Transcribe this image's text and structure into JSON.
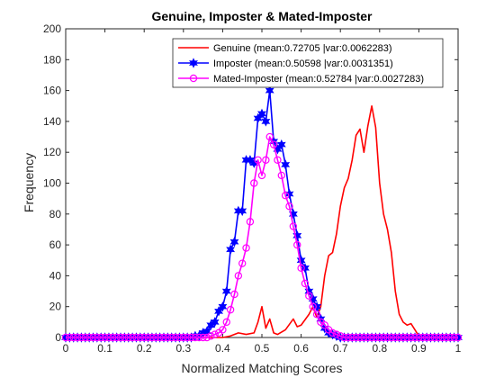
{
  "chart_data": {
    "type": "line",
    "title": "Genuine, Imposter & Mated-Imposter",
    "xlabel": "Normalized Matching Scores",
    "ylabel": "Frequency",
    "xlim": [
      0,
      1
    ],
    "ylim": [
      0,
      200
    ],
    "xticks": [
      "0",
      "0.1",
      "0.2",
      "0.3",
      "0.4",
      "0.5",
      "0.6",
      "0.7",
      "0.8",
      "0.9",
      "1"
    ],
    "yticks": [
      "0",
      "20",
      "40",
      "60",
      "80",
      "100",
      "120",
      "140",
      "160",
      "180",
      "200"
    ],
    "grid": false,
    "legend_position": "top-right",
    "series": [
      {
        "name": "Genuine (mean:0.72705 |var:0.0062283)",
        "color": "#ff0000",
        "marker": "none",
        "points": [
          [
            0,
            0
          ],
          [
            0.1,
            0
          ],
          [
            0.2,
            0
          ],
          [
            0.3,
            0
          ],
          [
            0.4,
            0
          ],
          [
            0.42,
            1
          ],
          [
            0.44,
            3
          ],
          [
            0.46,
            2
          ],
          [
            0.48,
            3
          ],
          [
            0.49,
            10
          ],
          [
            0.5,
            20
          ],
          [
            0.51,
            6
          ],
          [
            0.52,
            12
          ],
          [
            0.53,
            3
          ],
          [
            0.54,
            2
          ],
          [
            0.56,
            5
          ],
          [
            0.58,
            12
          ],
          [
            0.59,
            7
          ],
          [
            0.6,
            8
          ],
          [
            0.62,
            15
          ],
          [
            0.63,
            20
          ],
          [
            0.64,
            13
          ],
          [
            0.65,
            20
          ],
          [
            0.66,
            40
          ],
          [
            0.67,
            53
          ],
          [
            0.68,
            55
          ],
          [
            0.69,
            67
          ],
          [
            0.7,
            85
          ],
          [
            0.71,
            97
          ],
          [
            0.72,
            103
          ],
          [
            0.73,
            115
          ],
          [
            0.74,
            131
          ],
          [
            0.75,
            135
          ],
          [
            0.76,
            120
          ],
          [
            0.77,
            137
          ],
          [
            0.78,
            150
          ],
          [
            0.79,
            136
          ],
          [
            0.8,
            100
          ],
          [
            0.81,
            80
          ],
          [
            0.82,
            70
          ],
          [
            0.83,
            55
          ],
          [
            0.84,
            30
          ],
          [
            0.85,
            15
          ],
          [
            0.86,
            10
          ],
          [
            0.87,
            8
          ],
          [
            0.88,
            9
          ],
          [
            0.89,
            5
          ],
          [
            0.9,
            1
          ],
          [
            0.95,
            0
          ],
          [
            1.0,
            0
          ]
        ]
      },
      {
        "name": "Imposter (mean:0.50598 |var:0.0031351)",
        "color": "#0000ff",
        "marker": "hexagram",
        "points": [
          [
            0,
            0
          ],
          [
            0.01,
            0
          ],
          [
            0.02,
            0
          ],
          [
            0.03,
            0
          ],
          [
            0.04,
            0
          ],
          [
            0.05,
            0
          ],
          [
            0.06,
            0
          ],
          [
            0.07,
            0
          ],
          [
            0.08,
            0
          ],
          [
            0.09,
            0
          ],
          [
            0.1,
            0
          ],
          [
            0.11,
            0
          ],
          [
            0.12,
            0
          ],
          [
            0.13,
            0
          ],
          [
            0.14,
            0
          ],
          [
            0.15,
            0
          ],
          [
            0.16,
            0
          ],
          [
            0.17,
            0
          ],
          [
            0.18,
            0
          ],
          [
            0.19,
            0
          ],
          [
            0.2,
            0
          ],
          [
            0.21,
            0
          ],
          [
            0.22,
            0
          ],
          [
            0.23,
            0
          ],
          [
            0.24,
            0
          ],
          [
            0.25,
            0
          ],
          [
            0.26,
            0
          ],
          [
            0.27,
            0
          ],
          [
            0.28,
            0
          ],
          [
            0.29,
            0
          ],
          [
            0.3,
            0
          ],
          [
            0.31,
            0
          ],
          [
            0.32,
            0
          ],
          [
            0.33,
            1
          ],
          [
            0.34,
            1
          ],
          [
            0.35,
            3
          ],
          [
            0.36,
            4
          ],
          [
            0.37,
            8
          ],
          [
            0.38,
            10
          ],
          [
            0.39,
            17
          ],
          [
            0.4,
            20
          ],
          [
            0.41,
            30
          ],
          [
            0.42,
            57
          ],
          [
            0.43,
            62
          ],
          [
            0.44,
            82
          ],
          [
            0.45,
            82
          ],
          [
            0.46,
            115
          ],
          [
            0.47,
            115
          ],
          [
            0.48,
            113
          ],
          [
            0.49,
            142
          ],
          [
            0.5,
            145
          ],
          [
            0.51,
            140
          ],
          [
            0.52,
            160
          ],
          [
            0.53,
            127
          ],
          [
            0.54,
            122
          ],
          [
            0.55,
            125
          ],
          [
            0.56,
            112
          ],
          [
            0.57,
            93
          ],
          [
            0.58,
            80
          ],
          [
            0.59,
            66
          ],
          [
            0.6,
            50
          ],
          [
            0.61,
            45
          ],
          [
            0.62,
            30
          ],
          [
            0.63,
            25
          ],
          [
            0.64,
            20
          ],
          [
            0.65,
            12
          ],
          [
            0.66,
            6
          ],
          [
            0.67,
            3
          ],
          [
            0.68,
            2
          ],
          [
            0.69,
            1
          ],
          [
            0.7,
            0
          ],
          [
            0.71,
            0
          ],
          [
            0.72,
            0
          ],
          [
            0.73,
            0
          ],
          [
            0.74,
            0
          ],
          [
            0.75,
            0
          ],
          [
            0.76,
            0
          ],
          [
            0.77,
            0
          ],
          [
            0.78,
            0
          ],
          [
            0.79,
            0
          ],
          [
            0.8,
            0
          ],
          [
            0.81,
            0
          ],
          [
            0.82,
            0
          ],
          [
            0.83,
            0
          ],
          [
            0.84,
            0
          ],
          [
            0.85,
            0
          ],
          [
            0.86,
            0
          ],
          [
            0.87,
            0
          ],
          [
            0.88,
            0
          ],
          [
            0.89,
            0
          ],
          [
            0.9,
            0
          ],
          [
            0.91,
            0
          ],
          [
            0.92,
            0
          ],
          [
            0.93,
            0
          ],
          [
            0.94,
            0
          ],
          [
            0.95,
            0
          ],
          [
            0.96,
            0
          ],
          [
            0.97,
            0
          ],
          [
            0.98,
            0
          ],
          [
            0.99,
            0
          ],
          [
            1.0,
            0
          ]
        ]
      },
      {
        "name": "Mated-Imposter (mean:0.52784 |var:0.0027283)",
        "color": "#ff00ff",
        "marker": "circle",
        "points": [
          [
            0,
            0
          ],
          [
            0.01,
            0
          ],
          [
            0.02,
            0
          ],
          [
            0.03,
            0
          ],
          [
            0.04,
            0
          ],
          [
            0.05,
            0
          ],
          [
            0.06,
            0
          ],
          [
            0.07,
            0
          ],
          [
            0.08,
            0
          ],
          [
            0.09,
            0
          ],
          [
            0.1,
            0
          ],
          [
            0.11,
            0
          ],
          [
            0.12,
            0
          ],
          [
            0.13,
            0
          ],
          [
            0.14,
            0
          ],
          [
            0.15,
            0
          ],
          [
            0.16,
            0
          ],
          [
            0.17,
            0
          ],
          [
            0.18,
            0
          ],
          [
            0.19,
            0
          ],
          [
            0.2,
            0
          ],
          [
            0.21,
            0
          ],
          [
            0.22,
            0
          ],
          [
            0.23,
            0
          ],
          [
            0.24,
            0
          ],
          [
            0.25,
            0
          ],
          [
            0.26,
            0
          ],
          [
            0.27,
            0
          ],
          [
            0.28,
            0
          ],
          [
            0.29,
            0
          ],
          [
            0.3,
            0
          ],
          [
            0.31,
            0
          ],
          [
            0.32,
            0
          ],
          [
            0.33,
            0
          ],
          [
            0.34,
            0
          ],
          [
            0.35,
            0
          ],
          [
            0.36,
            0
          ],
          [
            0.37,
            1
          ],
          [
            0.38,
            2
          ],
          [
            0.39,
            3
          ],
          [
            0.4,
            5
          ],
          [
            0.41,
            10
          ],
          [
            0.42,
            18
          ],
          [
            0.43,
            28
          ],
          [
            0.44,
            40
          ],
          [
            0.45,
            48
          ],
          [
            0.46,
            58
          ],
          [
            0.47,
            75
          ],
          [
            0.48,
            100
          ],
          [
            0.49,
            115
          ],
          [
            0.5,
            105
          ],
          [
            0.51,
            115
          ],
          [
            0.52,
            130
          ],
          [
            0.53,
            125
          ],
          [
            0.54,
            115
          ],
          [
            0.55,
            105
          ],
          [
            0.56,
            92
          ],
          [
            0.57,
            85
          ],
          [
            0.58,
            72
          ],
          [
            0.59,
            60
          ],
          [
            0.6,
            45
          ],
          [
            0.61,
            35
          ],
          [
            0.62,
            27
          ],
          [
            0.63,
            20
          ],
          [
            0.64,
            15
          ],
          [
            0.65,
            10
          ],
          [
            0.66,
            8
          ],
          [
            0.67,
            5
          ],
          [
            0.68,
            3
          ],
          [
            0.69,
            2
          ],
          [
            0.7,
            1
          ],
          [
            0.71,
            0
          ],
          [
            0.72,
            0
          ],
          [
            0.73,
            0
          ],
          [
            0.74,
            0
          ],
          [
            0.75,
            0
          ],
          [
            0.76,
            0
          ],
          [
            0.77,
            0
          ],
          [
            0.78,
            0
          ],
          [
            0.79,
            0
          ],
          [
            0.8,
            0
          ],
          [
            0.81,
            0
          ],
          [
            0.82,
            0
          ],
          [
            0.83,
            0
          ],
          [
            0.84,
            0
          ],
          [
            0.85,
            0
          ],
          [
            0.86,
            0
          ],
          [
            0.87,
            0
          ],
          [
            0.88,
            0
          ],
          [
            0.89,
            0
          ],
          [
            0.9,
            0
          ],
          [
            0.91,
            0
          ],
          [
            0.92,
            0
          ],
          [
            0.93,
            0
          ],
          [
            0.94,
            0
          ],
          [
            0.95,
            0
          ],
          [
            0.96,
            0
          ],
          [
            0.97,
            0
          ],
          [
            0.98,
            0
          ],
          [
            0.99,
            0
          ],
          [
            1.0,
            0
          ]
        ]
      }
    ]
  }
}
